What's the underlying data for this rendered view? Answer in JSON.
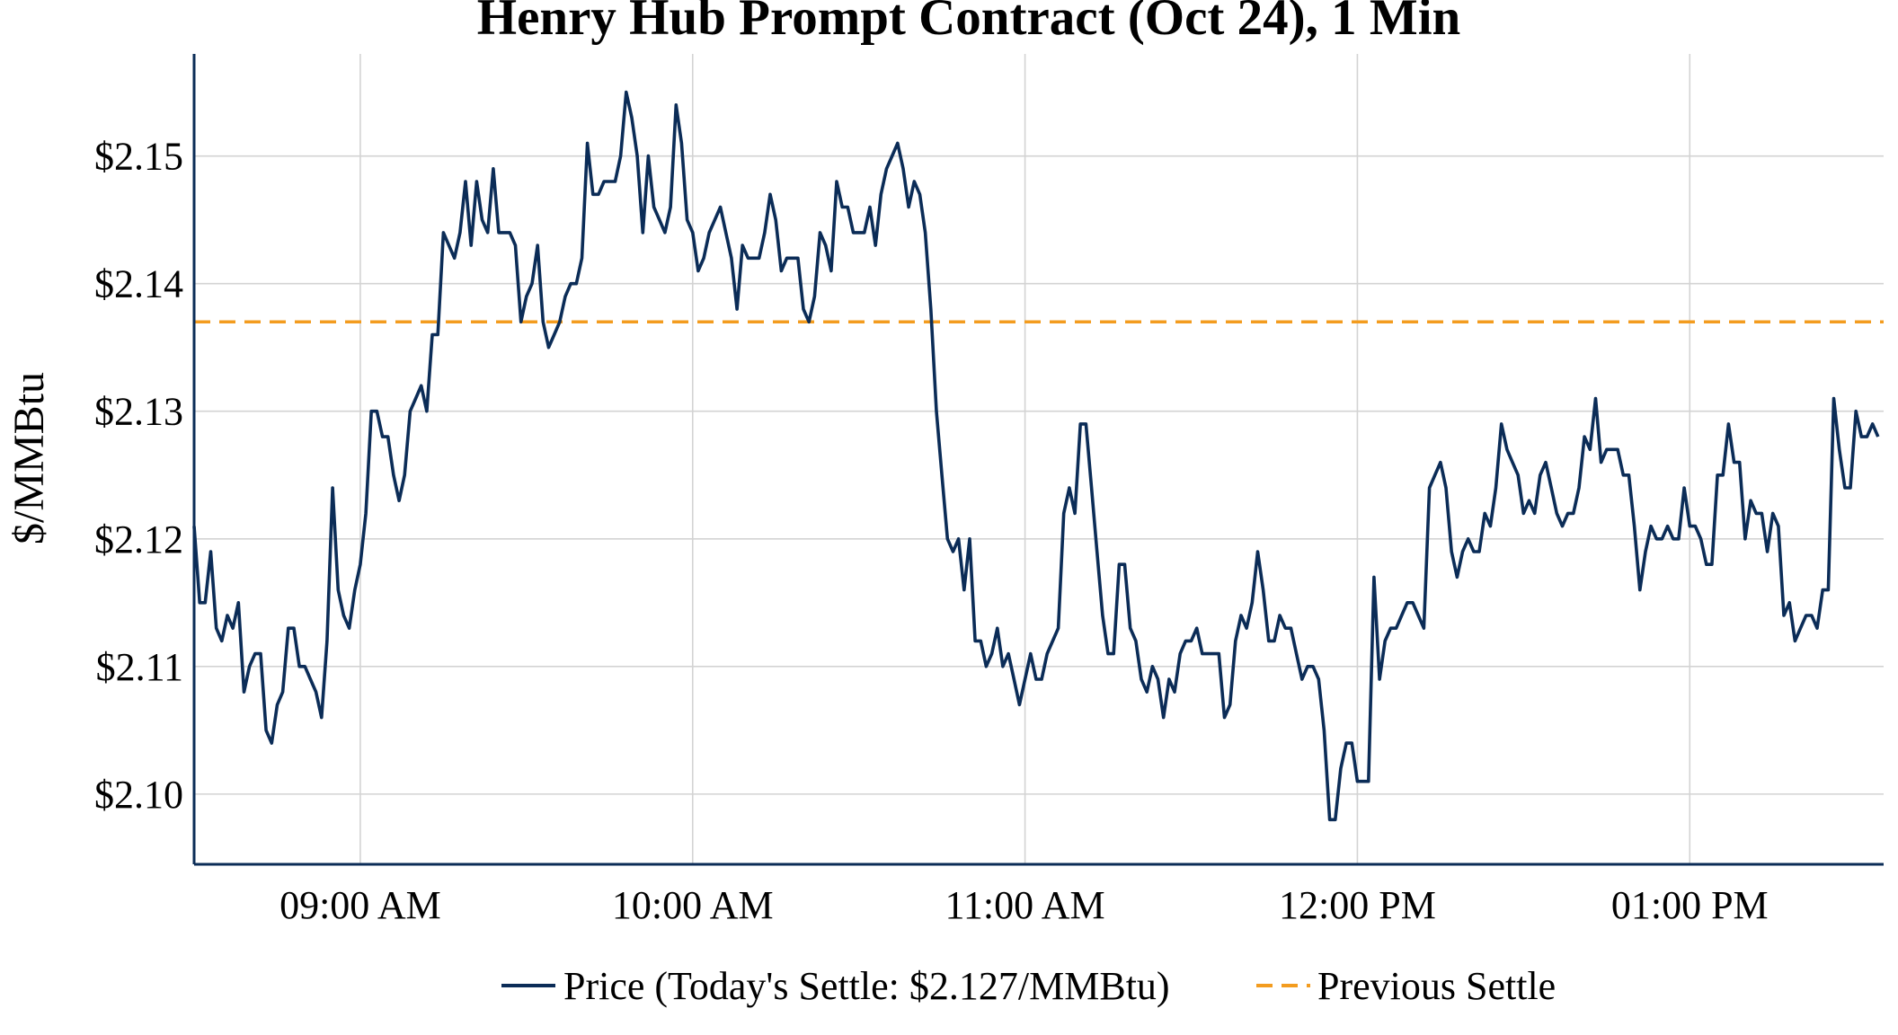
{
  "chart_data": {
    "type": "line",
    "title": "Henry Hub Prompt Contract (Oct 24), 1 Min",
    "xlabel": "",
    "ylabel": "$/MMBtu",
    "x_ticks": [
      {
        "minute": 540,
        "label": "09:00 AM"
      },
      {
        "minute": 600,
        "label": "10:00 AM"
      },
      {
        "minute": 660,
        "label": "11:00 AM"
      },
      {
        "minute": 720,
        "label": "12:00 PM"
      },
      {
        "minute": 780,
        "label": "01:00 PM"
      }
    ],
    "y_ticks": [
      {
        "value": 2.1,
        "label": "$2.10"
      },
      {
        "value": 2.11,
        "label": "$2.11"
      },
      {
        "value": 2.12,
        "label": "$2.12"
      },
      {
        "value": 2.13,
        "label": "$2.13"
      },
      {
        "value": 2.14,
        "label": "$2.14"
      },
      {
        "value": 2.15,
        "label": "$2.15"
      }
    ],
    "xlim": [
      510,
      815
    ],
    "ylim": [
      2.0945,
      2.158
    ],
    "grid": true,
    "legend_position": "bottom-center",
    "series": [
      {
        "name": "Price (Today's Settle: $2.127/MMBtu)",
        "color": "#0b2c57",
        "style": "solid",
        "points": [
          [
            510,
            2.121
          ],
          [
            511,
            2.115
          ],
          [
            512,
            2.115
          ],
          [
            513,
            2.119
          ],
          [
            514,
            2.113
          ],
          [
            515,
            2.112
          ],
          [
            516,
            2.114
          ],
          [
            517,
            2.113
          ],
          [
            518,
            2.115
          ],
          [
            519,
            2.108
          ],
          [
            520,
            2.11
          ],
          [
            521,
            2.111
          ],
          [
            522,
            2.111
          ],
          [
            523,
            2.105
          ],
          [
            524,
            2.104
          ],
          [
            525,
            2.107
          ],
          [
            526,
            2.108
          ],
          [
            527,
            2.113
          ],
          [
            528,
            2.113
          ],
          [
            529,
            2.11
          ],
          [
            530,
            2.11
          ],
          [
            531,
            2.109
          ],
          [
            532,
            2.108
          ],
          [
            533,
            2.106
          ],
          [
            534,
            2.112
          ],
          [
            535,
            2.124
          ],
          [
            536,
            2.116
          ],
          [
            537,
            2.114
          ],
          [
            538,
            2.113
          ],
          [
            539,
            2.116
          ],
          [
            540,
            2.118
          ],
          [
            541,
            2.122
          ],
          [
            542,
            2.13
          ],
          [
            543,
            2.13
          ],
          [
            544,
            2.128
          ],
          [
            545,
            2.128
          ],
          [
            546,
            2.125
          ],
          [
            547,
            2.123
          ],
          [
            548,
            2.125
          ],
          [
            549,
            2.13
          ],
          [
            550,
            2.131
          ],
          [
            551,
            2.132
          ],
          [
            552,
            2.13
          ],
          [
            553,
            2.136
          ],
          [
            554,
            2.136
          ],
          [
            555,
            2.144
          ],
          [
            556,
            2.143
          ],
          [
            557,
            2.142
          ],
          [
            558,
            2.144
          ],
          [
            559,
            2.148
          ],
          [
            560,
            2.143
          ],
          [
            561,
            2.148
          ],
          [
            562,
            2.145
          ],
          [
            563,
            2.144
          ],
          [
            564,
            2.149
          ],
          [
            565,
            2.144
          ],
          [
            566,
            2.144
          ],
          [
            567,
            2.144
          ],
          [
            568,
            2.143
          ],
          [
            569,
            2.137
          ],
          [
            570,
            2.139
          ],
          [
            571,
            2.14
          ],
          [
            572,
            2.143
          ],
          [
            573,
            2.137
          ],
          [
            574,
            2.135
          ],
          [
            575,
            2.136
          ],
          [
            576,
            2.137
          ],
          [
            577,
            2.139
          ],
          [
            578,
            2.14
          ],
          [
            579,
            2.14
          ],
          [
            580,
            2.142
          ],
          [
            581,
            2.151
          ],
          [
            582,
            2.147
          ],
          [
            583,
            2.147
          ],
          [
            584,
            2.148
          ],
          [
            585,
            2.148
          ],
          [
            586,
            2.148
          ],
          [
            587,
            2.15
          ],
          [
            588,
            2.155
          ],
          [
            589,
            2.153
          ],
          [
            590,
            2.15
          ],
          [
            591,
            2.144
          ],
          [
            592,
            2.15
          ],
          [
            593,
            2.146
          ],
          [
            594,
            2.145
          ],
          [
            595,
            2.144
          ],
          [
            596,
            2.146
          ],
          [
            597,
            2.154
          ],
          [
            598,
            2.151
          ],
          [
            599,
            2.145
          ],
          [
            600,
            2.144
          ],
          [
            601,
            2.141
          ],
          [
            602,
            2.142
          ],
          [
            603,
            2.144
          ],
          [
            604,
            2.145
          ],
          [
            605,
            2.146
          ],
          [
            606,
            2.144
          ],
          [
            607,
            2.142
          ],
          [
            608,
            2.138
          ],
          [
            609,
            2.143
          ],
          [
            610,
            2.142
          ],
          [
            611,
            2.142
          ],
          [
            612,
            2.142
          ],
          [
            613,
            2.144
          ],
          [
            614,
            2.147
          ],
          [
            615,
            2.145
          ],
          [
            616,
            2.141
          ],
          [
            617,
            2.142
          ],
          [
            618,
            2.142
          ],
          [
            619,
            2.142
          ],
          [
            620,
            2.138
          ],
          [
            621,
            2.137
          ],
          [
            622,
            2.139
          ],
          [
            623,
            2.144
          ],
          [
            624,
            2.143
          ],
          [
            625,
            2.141
          ],
          [
            626,
            2.148
          ],
          [
            627,
            2.146
          ],
          [
            628,
            2.146
          ],
          [
            629,
            2.144
          ],
          [
            630,
            2.144
          ],
          [
            631,
            2.144
          ],
          [
            632,
            2.146
          ],
          [
            633,
            2.143
          ],
          [
            634,
            2.147
          ],
          [
            635,
            2.149
          ],
          [
            636,
            2.15
          ],
          [
            637,
            2.151
          ],
          [
            638,
            2.149
          ],
          [
            639,
            2.146
          ],
          [
            640,
            2.148
          ],
          [
            641,
            2.147
          ],
          [
            642,
            2.144
          ],
          [
            643,
            2.138
          ],
          [
            644,
            2.13
          ],
          [
            645,
            2.125
          ],
          [
            646,
            2.12
          ],
          [
            647,
            2.119
          ],
          [
            648,
            2.12
          ],
          [
            649,
            2.116
          ],
          [
            650,
            2.12
          ],
          [
            651,
            2.112
          ],
          [
            652,
            2.112
          ],
          [
            653,
            2.11
          ],
          [
            654,
            2.111
          ],
          [
            655,
            2.113
          ],
          [
            656,
            2.11
          ],
          [
            657,
            2.111
          ],
          [
            658,
            2.109
          ],
          [
            659,
            2.107
          ],
          [
            660,
            2.109
          ],
          [
            661,
            2.111
          ],
          [
            662,
            2.109
          ],
          [
            663,
            2.109
          ],
          [
            664,
            2.111
          ],
          [
            665,
            2.112
          ],
          [
            666,
            2.113
          ],
          [
            667,
            2.122
          ],
          [
            668,
            2.124
          ],
          [
            669,
            2.122
          ],
          [
            670,
            2.129
          ],
          [
            671,
            2.129
          ],
          [
            672,
            2.124
          ],
          [
            673,
            2.119
          ],
          [
            674,
            2.114
          ],
          [
            675,
            2.111
          ],
          [
            676,
            2.111
          ],
          [
            677,
            2.118
          ],
          [
            678,
            2.118
          ],
          [
            679,
            2.113
          ],
          [
            680,
            2.112
          ],
          [
            681,
            2.109
          ],
          [
            682,
            2.108
          ],
          [
            683,
            2.11
          ],
          [
            684,
            2.109
          ],
          [
            685,
            2.106
          ],
          [
            686,
            2.109
          ],
          [
            687,
            2.108
          ],
          [
            688,
            2.111
          ],
          [
            689,
            2.112
          ],
          [
            690,
            2.112
          ],
          [
            691,
            2.113
          ],
          [
            692,
            2.111
          ],
          [
            693,
            2.111
          ],
          [
            694,
            2.111
          ],
          [
            695,
            2.111
          ],
          [
            696,
            2.106
          ],
          [
            697,
            2.107
          ],
          [
            698,
            2.112
          ],
          [
            699,
            2.114
          ],
          [
            700,
            2.113
          ],
          [
            701,
            2.115
          ],
          [
            702,
            2.119
          ],
          [
            703,
            2.116
          ],
          [
            704,
            2.112
          ],
          [
            705,
            2.112
          ],
          [
            706,
            2.114
          ],
          [
            707,
            2.113
          ],
          [
            708,
            2.113
          ],
          [
            709,
            2.111
          ],
          [
            710,
            2.109
          ],
          [
            711,
            2.11
          ],
          [
            712,
            2.11
          ],
          [
            713,
            2.109
          ],
          [
            714,
            2.105
          ],
          [
            715,
            2.098
          ],
          [
            716,
            2.098
          ],
          [
            717,
            2.102
          ],
          [
            718,
            2.104
          ],
          [
            719,
            2.104
          ],
          [
            720,
            2.101
          ],
          [
            721,
            2.101
          ],
          [
            722,
            2.101
          ],
          [
            723,
            2.117
          ],
          [
            724,
            2.109
          ],
          [
            725,
            2.112
          ],
          [
            726,
            2.113
          ],
          [
            727,
            2.113
          ],
          [
            728,
            2.114
          ],
          [
            729,
            2.115
          ],
          [
            730,
            2.115
          ],
          [
            731,
            2.114
          ],
          [
            732,
            2.113
          ],
          [
            733,
            2.124
          ],
          [
            734,
            2.125
          ],
          [
            735,
            2.126
          ],
          [
            736,
            2.124
          ],
          [
            737,
            2.119
          ],
          [
            738,
            2.117
          ],
          [
            739,
            2.119
          ],
          [
            740,
            2.12
          ],
          [
            741,
            2.119
          ],
          [
            742,
            2.119
          ],
          [
            743,
            2.122
          ],
          [
            744,
            2.121
          ],
          [
            745,
            2.124
          ],
          [
            746,
            2.129
          ],
          [
            747,
            2.127
          ],
          [
            748,
            2.126
          ],
          [
            749,
            2.125
          ],
          [
            750,
            2.122
          ],
          [
            751,
            2.123
          ],
          [
            752,
            2.122
          ],
          [
            753,
            2.125
          ],
          [
            754,
            2.126
          ],
          [
            755,
            2.124
          ],
          [
            756,
            2.122
          ],
          [
            757,
            2.121
          ],
          [
            758,
            2.122
          ],
          [
            759,
            2.122
          ],
          [
            760,
            2.124
          ],
          [
            761,
            2.128
          ],
          [
            762,
            2.127
          ],
          [
            763,
            2.131
          ],
          [
            764,
            2.126
          ],
          [
            765,
            2.127
          ],
          [
            766,
            2.127
          ],
          [
            767,
            2.127
          ],
          [
            768,
            2.125
          ],
          [
            769,
            2.125
          ],
          [
            770,
            2.121
          ],
          [
            771,
            2.116
          ],
          [
            772,
            2.119
          ],
          [
            773,
            2.121
          ],
          [
            774,
            2.12
          ],
          [
            775,
            2.12
          ],
          [
            776,
            2.121
          ],
          [
            777,
            2.12
          ],
          [
            778,
            2.12
          ],
          [
            779,
            2.124
          ],
          [
            780,
            2.121
          ],
          [
            781,
            2.121
          ],
          [
            782,
            2.12
          ],
          [
            783,
            2.118
          ],
          [
            784,
            2.118
          ],
          [
            785,
            2.125
          ],
          [
            786,
            2.125
          ],
          [
            787,
            2.129
          ],
          [
            788,
            2.126
          ],
          [
            789,
            2.126
          ],
          [
            790,
            2.12
          ],
          [
            791,
            2.123
          ],
          [
            792,
            2.122
          ],
          [
            793,
            2.122
          ],
          [
            794,
            2.119
          ],
          [
            795,
            2.122
          ],
          [
            796,
            2.121
          ],
          [
            797,
            2.114
          ],
          [
            798,
            2.115
          ],
          [
            799,
            2.112
          ],
          [
            800,
            2.113
          ],
          [
            801,
            2.114
          ],
          [
            802,
            2.114
          ],
          [
            803,
            2.113
          ],
          [
            804,
            2.116
          ],
          [
            805,
            2.116
          ],
          [
            806,
            2.131
          ],
          [
            807,
            2.127
          ],
          [
            808,
            2.124
          ],
          [
            809,
            2.124
          ],
          [
            810,
            2.13
          ],
          [
            811,
            2.128
          ],
          [
            812,
            2.128
          ],
          [
            813,
            2.129
          ],
          [
            814,
            2.128
          ]
        ]
      },
      {
        "name": "Previous Settle",
        "color": "#f39c1f",
        "style": "dashed",
        "value": 2.137
      }
    ]
  }
}
